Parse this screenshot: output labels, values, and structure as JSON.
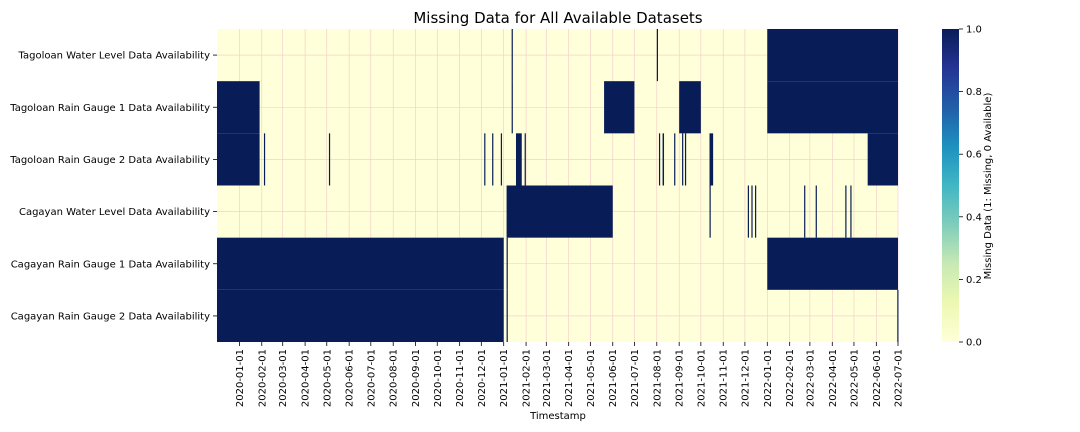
{
  "chart_data": {
    "type": "heatmap",
    "title": "Missing Data for All Available Datasets",
    "xlabel": "Timestamp",
    "colorbar_label": "Missing Data (1: Missing, 0 Available)",
    "colorbar_ticks": [
      "0.0",
      "0.2",
      "0.4",
      "0.6",
      "0.8",
      "1.0"
    ],
    "colorbar_range": [
      0,
      1
    ],
    "colors": {
      "missing": "#081d58",
      "available": "#ffffd9",
      "grid": "#f4c9c9"
    },
    "grid": true,
    "x_start": "2019-12-01",
    "x_end": "2022-07-01",
    "x_tick_labels": [
      "2020-01-01",
      "2020-02-01",
      "2020-03-01",
      "2020-04-01",
      "2020-05-01",
      "2020-06-01",
      "2020-07-01",
      "2020-08-01",
      "2020-09-01",
      "2020-10-01",
      "2020-11-01",
      "2020-12-01",
      "2021-01-01",
      "2021-02-01",
      "2021-03-01",
      "2021-04-01",
      "2021-05-01",
      "2021-06-01",
      "2021-07-01",
      "2021-08-01",
      "2021-09-01",
      "2021-10-01",
      "2021-11-01",
      "2021-12-01",
      "2022-01-01",
      "2022-02-01",
      "2022-03-01",
      "2022-04-01",
      "2022-05-01",
      "2022-06-01",
      "2022-07-01"
    ],
    "rows": [
      {
        "label": "Tagoloan Water Level Data Availability",
        "missing_intervals": [
          [
            "2021-01-12",
            "2021-01-13"
          ],
          [
            "2021-08-01",
            "2021-08-02"
          ],
          [
            "2022-01-01",
            "2022-07-01"
          ]
        ]
      },
      {
        "label": "Tagoloan Rain Gauge 1 Data Availability",
        "missing_intervals": [
          [
            "2019-12-01",
            "2020-01-29"
          ],
          [
            "2021-01-12",
            "2021-01-13"
          ],
          [
            "2021-05-20",
            "2021-07-01"
          ],
          [
            "2021-09-01",
            "2021-10-01"
          ],
          [
            "2022-01-01",
            "2022-07-01"
          ]
        ]
      },
      {
        "label": "Tagoloan Rain Gauge 2 Data Availability",
        "missing_intervals": [
          [
            "2019-12-01",
            "2020-01-29"
          ],
          [
            "2020-02-04",
            "2020-02-05"
          ],
          [
            "2020-05-04",
            "2020-05-05"
          ],
          [
            "2020-12-05",
            "2020-12-06"
          ],
          [
            "2020-12-16",
            "2020-12-17"
          ],
          [
            "2020-12-28",
            "2020-12-29"
          ],
          [
            "2021-01-18",
            "2021-01-26"
          ],
          [
            "2021-01-30",
            "2021-01-31"
          ],
          [
            "2021-08-04",
            "2021-08-05"
          ],
          [
            "2021-08-09",
            "2021-08-11"
          ],
          [
            "2021-08-25",
            "2021-08-26"
          ],
          [
            "2021-09-05",
            "2021-09-06"
          ],
          [
            "2021-09-09",
            "2021-09-10"
          ],
          [
            "2021-10-13",
            "2021-10-18"
          ],
          [
            "2022-05-20",
            "2022-07-01"
          ]
        ]
      },
      {
        "label": "Cagayan Water Level Data Availability",
        "missing_intervals": [
          [
            "2021-01-05",
            "2021-06-01"
          ],
          [
            "2021-10-13",
            "2021-10-14"
          ],
          [
            "2021-12-05",
            "2021-12-06"
          ],
          [
            "2021-12-10",
            "2021-12-11"
          ],
          [
            "2021-12-15",
            "2021-12-16"
          ],
          [
            "2022-02-21",
            "2022-02-22"
          ],
          [
            "2022-03-09",
            "2022-03-10"
          ],
          [
            "2022-04-19",
            "2022-04-20"
          ],
          [
            "2022-04-26",
            "2022-04-27"
          ]
        ]
      },
      {
        "label": "Cagayan Rain Gauge 1 Data Availability",
        "missing_intervals": [
          [
            "2019-12-01",
            "2021-01-01"
          ],
          [
            "2021-01-05",
            "2021-01-06"
          ],
          [
            "2022-01-01",
            "2022-07-01"
          ]
        ]
      },
      {
        "label": "Cagayan Rain Gauge 2 Data Availability",
        "missing_intervals": [
          [
            "2019-12-01",
            "2021-01-01"
          ],
          [
            "2021-01-05",
            "2021-01-06"
          ],
          [
            "2022-06-30",
            "2022-07-01"
          ]
        ]
      }
    ]
  }
}
